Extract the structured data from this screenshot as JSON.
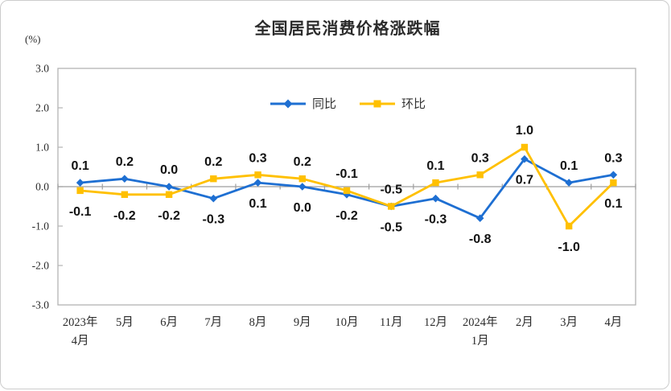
{
  "chart_data": {
    "type": "line",
    "title": "全国居民消费价格涨跌幅",
    "unit_label": "(%)",
    "categories": [
      "2023年\n4月",
      "5月",
      "6月",
      "7月",
      "8月",
      "9月",
      "10月",
      "11月",
      "12月",
      "2024年\n1月",
      "2月",
      "3月",
      "4月"
    ],
    "series": [
      {
        "name": "同比",
        "marker": "diamond",
        "color": "#1E6FD2",
        "values": [
          0.1,
          0.2,
          0.0,
          -0.3,
          0.1,
          0.0,
          -0.2,
          -0.5,
          -0.3,
          -0.8,
          0.7,
          0.1,
          0.3
        ]
      },
      {
        "name": "环比",
        "marker": "square",
        "color": "#FFC000",
        "values": [
          -0.1,
          -0.2,
          -0.2,
          0.2,
          0.3,
          0.2,
          -0.1,
          -0.5,
          0.1,
          0.3,
          1.0,
          -1.0,
          0.1
        ]
      }
    ],
    "ylim": [
      -3.0,
      3.0
    ],
    "ytick_step": 1.0,
    "ytick_labels": [
      "3.0",
      "2.0",
      "1.0",
      "0.0",
      "-1.0",
      "-2.0",
      "-3.0"
    ],
    "grid": "zero-line-only",
    "legend_position": "top-center",
    "axis_color": "#b3b3b3",
    "zero_line_color": "#9e9e9e",
    "data_label_color": "#111111",
    "tick_label_color": "#2b2b2b"
  }
}
